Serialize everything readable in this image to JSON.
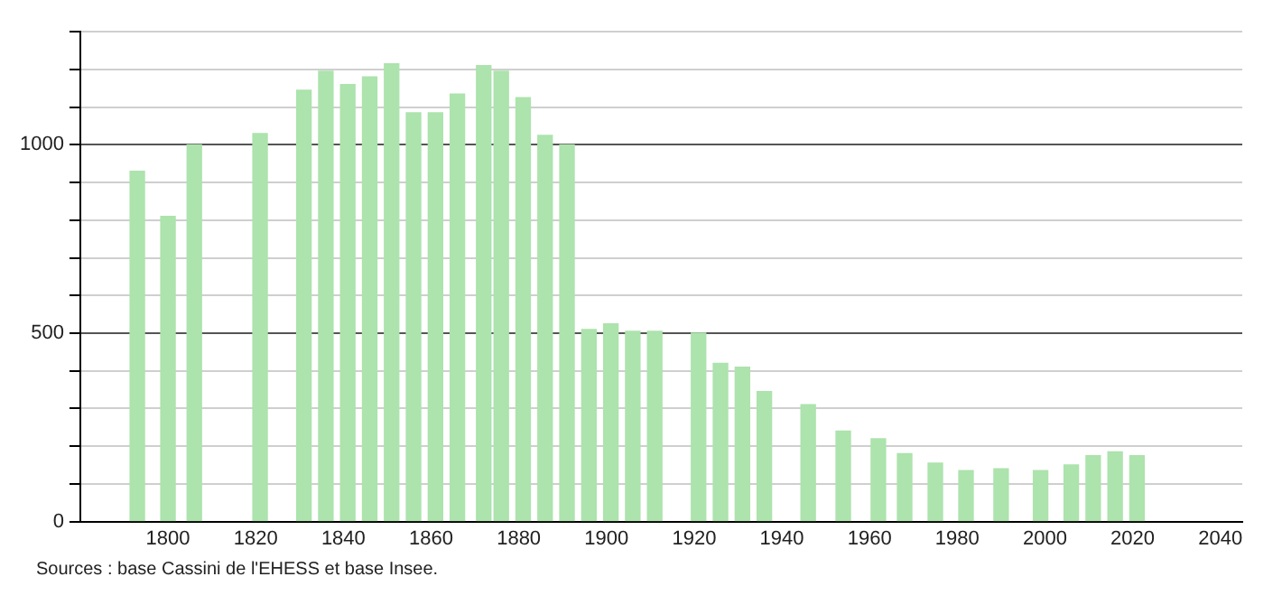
{
  "chart_data": {
    "type": "bar",
    "x": [
      1793,
      1800,
      1806,
      1821,
      1831,
      1836,
      1841,
      1846,
      1851,
      1856,
      1861,
      1866,
      1872,
      1876,
      1881,
      1886,
      1891,
      1896,
      1901,
      1906,
      1911,
      1921,
      1926,
      1931,
      1936,
      1946,
      1954,
      1962,
      1968,
      1975,
      1982,
      1990,
      1999,
      2006,
      2011,
      2016,
      2021
    ],
    "values": [
      930,
      810,
      1000,
      1030,
      1145,
      1195,
      1160,
      1180,
      1215,
      1085,
      1085,
      1135,
      1210,
      1195,
      1125,
      1025,
      1000,
      510,
      525,
      505,
      505,
      500,
      420,
      410,
      345,
      310,
      240,
      220,
      180,
      155,
      135,
      140,
      135,
      150,
      175,
      185,
      175
    ],
    "color": "#ade3ad",
    "xlim": [
      1780,
      2045
    ],
    "xticks": [
      1800,
      1820,
      1840,
      1860,
      1880,
      1900,
      1920,
      1940,
      1960,
      1980,
      2000,
      2020,
      2040
    ],
    "ylim": [
      0,
      1300
    ],
    "yticks": [
      0,
      {
        "value": 100,
        "label": null
      },
      {
        "value": 200,
        "label": null
      },
      {
        "value": 300,
        "label": null
      },
      {
        "value": 400,
        "label": null
      },
      500,
      {
        "value": 600,
        "label": null
      },
      {
        "value": 700,
        "label": null
      },
      {
        "value": 800,
        "label": null
      },
      {
        "value": 900,
        "label": null
      },
      1000,
      {
        "value": 1100,
        "label": null
      },
      {
        "value": 1200,
        "label": null
      },
      {
        "value": 1300,
        "label": null
      }
    ],
    "grid": "y",
    "legend": false,
    "annotations": [
      "Sources : base Cassini de l'EHESS et base Insee."
    ]
  }
}
